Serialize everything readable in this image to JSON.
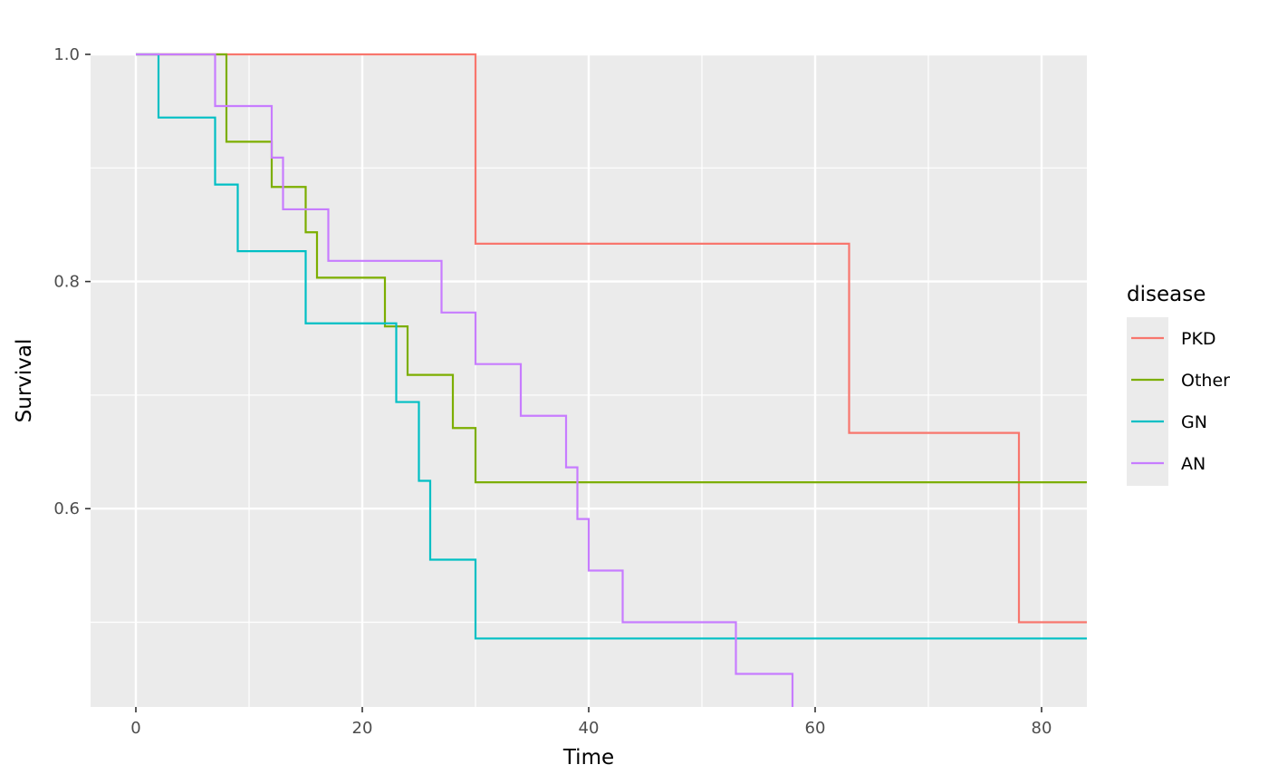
{
  "chart_data": {
    "type": "line",
    "step": true,
    "title": "",
    "xlabel": "Time",
    "ylabel": "Survival",
    "xlim": [
      -4,
      84
    ],
    "ylim": [
      0.4254,
      1.0
    ],
    "x_ticks": [
      0,
      20,
      40,
      60,
      80
    ],
    "x_tick_labels": [
      "0",
      "20",
      "40",
      "60",
      "80"
    ],
    "y_ticks": [
      0.6,
      0.8,
      1.0
    ],
    "y_tick_labels": [
      "0.6",
      "0.8",
      "1.0"
    ],
    "grid": true,
    "background": "#ebebeb",
    "legend": {
      "title": "disease",
      "position": "right"
    },
    "series": [
      {
        "name": "PKD",
        "color": "#f8766d",
        "steps": [
          [
            0,
            1.0
          ],
          [
            30,
            0.8333
          ],
          [
            63,
            0.6667
          ],
          [
            78,
            0.5
          ]
        ],
        "x_end": 84
      },
      {
        "name": "Other",
        "color": "#7cae00",
        "steps": [
          [
            0,
            1.0
          ],
          [
            8,
            0.9231
          ],
          [
            12,
            0.8833
          ],
          [
            15,
            0.8434
          ],
          [
            16,
            0.8034
          ],
          [
            22,
            0.7605
          ],
          [
            24,
            0.7178
          ],
          [
            28,
            0.671
          ],
          [
            30,
            0.6232
          ]
        ],
        "x_end": 84
      },
      {
        "name": "GN",
        "color": "#00bfc4",
        "steps": [
          [
            0,
            1.0
          ],
          [
            2,
            0.9444
          ],
          [
            7,
            0.8854
          ],
          [
            9,
            0.8267
          ],
          [
            15,
            0.7632
          ],
          [
            23,
            0.6939
          ],
          [
            25,
            0.6245
          ],
          [
            26,
            0.5551
          ],
          [
            30,
            0.4857
          ]
        ],
        "x_end": 84
      },
      {
        "name": "AN",
        "color": "#c77cff",
        "steps": [
          [
            0,
            1.0
          ],
          [
            7,
            0.9545
          ],
          [
            12,
            0.9091
          ],
          [
            13,
            0.8636
          ],
          [
            17,
            0.8182
          ],
          [
            27,
            0.7727
          ],
          [
            30,
            0.7273
          ],
          [
            34,
            0.6818
          ],
          [
            38,
            0.6364
          ],
          [
            39,
            0.5909
          ],
          [
            40,
            0.5455
          ],
          [
            43,
            0.5
          ],
          [
            53,
            0.4545
          ],
          [
            58,
            0.4254
          ]
        ],
        "x_end": 58
      }
    ]
  }
}
